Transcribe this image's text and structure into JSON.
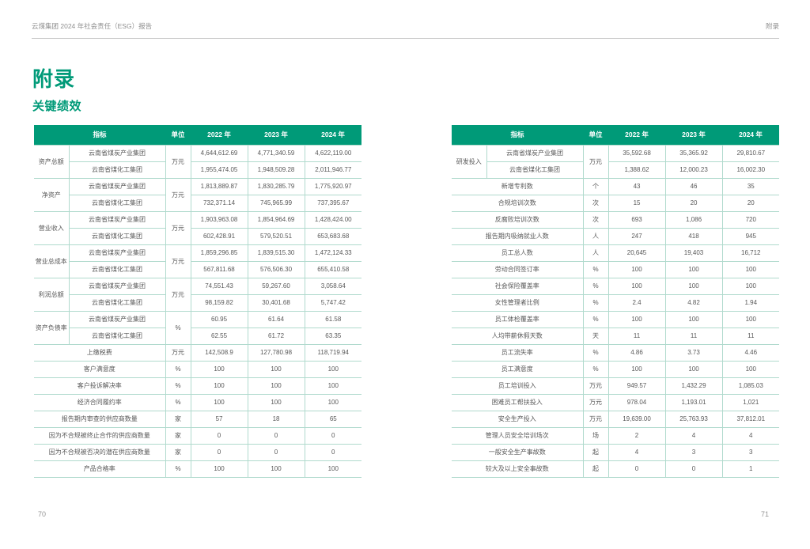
{
  "page": {
    "header_left": "云煤集团 2024 年社会责任（ESG）报告",
    "header_right": "附录",
    "title": "附录",
    "subtitle": "关键绩效",
    "page_number_left": "70",
    "page_number_right": "71"
  },
  "colors": {
    "accent_green": "#009a78",
    "table_border": "#b0dacd"
  },
  "tables": [
    {
      "name": "financial-and-supply-kpi",
      "columns": [
        "指标",
        "单位",
        "2022 年",
        "2023 年",
        "2024 年"
      ],
      "rows": [
        {
          "pos": "first",
          "group": "资产总额",
          "name": "云南省煤炭产业集团",
          "unit": "万元",
          "values": [
            "4,644,612.69",
            "4,771,340.59",
            "4,622,119.00"
          ]
        },
        {
          "pos": "second",
          "name": "云南省煤化工集团",
          "values": [
            "1,955,474.05",
            "1,948,509.28",
            "2,011,946.77"
          ]
        },
        {
          "pos": "first",
          "group": "净资产",
          "name": "云南省煤炭产业集团",
          "unit": "万元",
          "values": [
            "1,813,889.87",
            "1,830,285.79",
            "1,775,920.97"
          ]
        },
        {
          "pos": "second",
          "name": "云南省煤化工集团",
          "values": [
            "732,371.14",
            "745,965.99",
            "737,395.67"
          ]
        },
        {
          "pos": "first",
          "group": "营业收入",
          "name": "云南省煤炭产业集团",
          "unit": "万元",
          "values": [
            "1,903,963.08",
            "1,854,964.69",
            "1,428,424.00"
          ]
        },
        {
          "pos": "second",
          "name": "云南省煤化工集团",
          "values": [
            "602,428.91",
            "579,520.51",
            "653,683.68"
          ]
        },
        {
          "pos": "first",
          "group": "营业总成本",
          "name": "云南省煤炭产业集团",
          "unit": "万元",
          "values": [
            "1,859,296.85",
            "1,839,515.30",
            "1,472,124.33"
          ]
        },
        {
          "pos": "second",
          "name": "云南省煤化工集团",
          "values": [
            "567,811.68",
            "576,506.30",
            "655,410.58"
          ]
        },
        {
          "pos": "first",
          "group": "利润总额",
          "name": "云南省煤炭产业集团",
          "unit": "万元",
          "values": [
            "74,551.43",
            "59,267.60",
            "3,058.64"
          ]
        },
        {
          "pos": "second",
          "name": "云南省煤化工集团",
          "values": [
            "98,159.82",
            "30,401.68",
            "5,747.42"
          ]
        },
        {
          "pos": "first",
          "group": "资产负债率",
          "name": "云南省煤炭产业集团",
          "unit": "%",
          "values": [
            "60.95",
            "61.64",
            "61.58"
          ]
        },
        {
          "pos": "second",
          "name": "云南省煤化工集团",
          "values": [
            "62.55",
            "61.72",
            "63.35"
          ]
        },
        {
          "pos": "single",
          "name": "上缴税费",
          "unit": "万元",
          "values": [
            "142,508.9",
            "127,780.98",
            "118,719.94"
          ]
        },
        {
          "pos": "single",
          "name": "客户满意度",
          "unit": "%",
          "values": [
            "100",
            "100",
            "100"
          ]
        },
        {
          "pos": "single",
          "name": "客户投诉解决率",
          "unit": "%",
          "values": [
            "100",
            "100",
            "100"
          ]
        },
        {
          "pos": "single",
          "name": "经济合同履约率",
          "unit": "%",
          "values": [
            "100",
            "100",
            "100"
          ]
        },
        {
          "pos": "single",
          "name": "报告期内审查的供应商数量",
          "unit": "家",
          "values": [
            "57",
            "18",
            "65"
          ]
        },
        {
          "pos": "single",
          "name": "因为不合规被终止合作的供应商数量",
          "unit": "家",
          "values": [
            "0",
            "0",
            "0"
          ]
        },
        {
          "pos": "single",
          "name": "因为不合规被否决的潜在供应商数量",
          "unit": "家",
          "values": [
            "0",
            "0",
            "0"
          ]
        },
        {
          "pos": "single",
          "name": "产品合格率",
          "unit": "%",
          "values": [
            "100",
            "100",
            "100"
          ]
        }
      ]
    },
    {
      "name": "social-and-safety-kpi",
      "columns": [
        "指标",
        "单位",
        "2022 年",
        "2023 年",
        "2024 年"
      ],
      "rows": [
        {
          "pos": "first",
          "group": "研发投入",
          "name": "云南省煤炭产业集团",
          "unit": "万元",
          "values": [
            "35,592.68",
            "35,365.92",
            "29,810.67"
          ]
        },
        {
          "pos": "second",
          "name": "云南省煤化工集团",
          "values": [
            "1,388.62",
            "12,000.23",
            "16,002.30"
          ]
        },
        {
          "pos": "single",
          "name": "新增专利数",
          "unit": "个",
          "values": [
            "43",
            "46",
            "35"
          ]
        },
        {
          "pos": "single",
          "name": "合规培训次数",
          "unit": "次",
          "values": [
            "15",
            "20",
            "20"
          ]
        },
        {
          "pos": "single",
          "name": "反腐败培训次数",
          "unit": "次",
          "values": [
            "693",
            "1,086",
            "720"
          ]
        },
        {
          "pos": "single",
          "name": "报告期内吸纳就业人数",
          "unit": "人",
          "values": [
            "247",
            "418",
            "945"
          ]
        },
        {
          "pos": "single",
          "name": "员工总人数",
          "unit": "人",
          "values": [
            "20,645",
            "19,403",
            "16,712"
          ]
        },
        {
          "pos": "single",
          "name": "劳动合同签订率",
          "unit": "%",
          "values": [
            "100",
            "100",
            "100"
          ]
        },
        {
          "pos": "single",
          "name": "社会保险覆盖率",
          "unit": "%",
          "values": [
            "100",
            "100",
            "100"
          ]
        },
        {
          "pos": "single",
          "name": "女性管理者比例",
          "unit": "%",
          "values": [
            "2.4",
            "4.82",
            "1.94"
          ]
        },
        {
          "pos": "single",
          "name": "员工体检覆盖率",
          "unit": "%",
          "values": [
            "100",
            "100",
            "100"
          ]
        },
        {
          "pos": "single",
          "name": "人均带薪休假天数",
          "unit": "天",
          "values": [
            "11",
            "11",
            "11"
          ]
        },
        {
          "pos": "single",
          "name": "员工流失率",
          "unit": "%",
          "values": [
            "4.86",
            "3.73",
            "4.46"
          ]
        },
        {
          "pos": "single",
          "name": "员工满意度",
          "unit": "%",
          "values": [
            "100",
            "100",
            "100"
          ]
        },
        {
          "pos": "single",
          "name": "员工培训投入",
          "unit": "万元",
          "values": [
            "949.57",
            "1,432.29",
            "1,085.03"
          ]
        },
        {
          "pos": "single",
          "name": "困难员工帮扶投入",
          "unit": "万元",
          "values": [
            "978.04",
            "1,193.01",
            "1,021"
          ]
        },
        {
          "pos": "single",
          "name": "安全生产投入",
          "unit": "万元",
          "values": [
            "19,639.00",
            "25,763.93",
            "37,812.01"
          ]
        },
        {
          "pos": "single",
          "name": "管理人员安全培训场次",
          "unit": "场",
          "values": [
            "2",
            "4",
            "4"
          ]
        },
        {
          "pos": "single",
          "name": "一般安全生产事故数",
          "unit": "起",
          "values": [
            "4",
            "3",
            "3"
          ]
        },
        {
          "pos": "single",
          "name": "较大及以上安全事故数",
          "unit": "起",
          "values": [
            "0",
            "0",
            "1"
          ]
        }
      ]
    }
  ]
}
